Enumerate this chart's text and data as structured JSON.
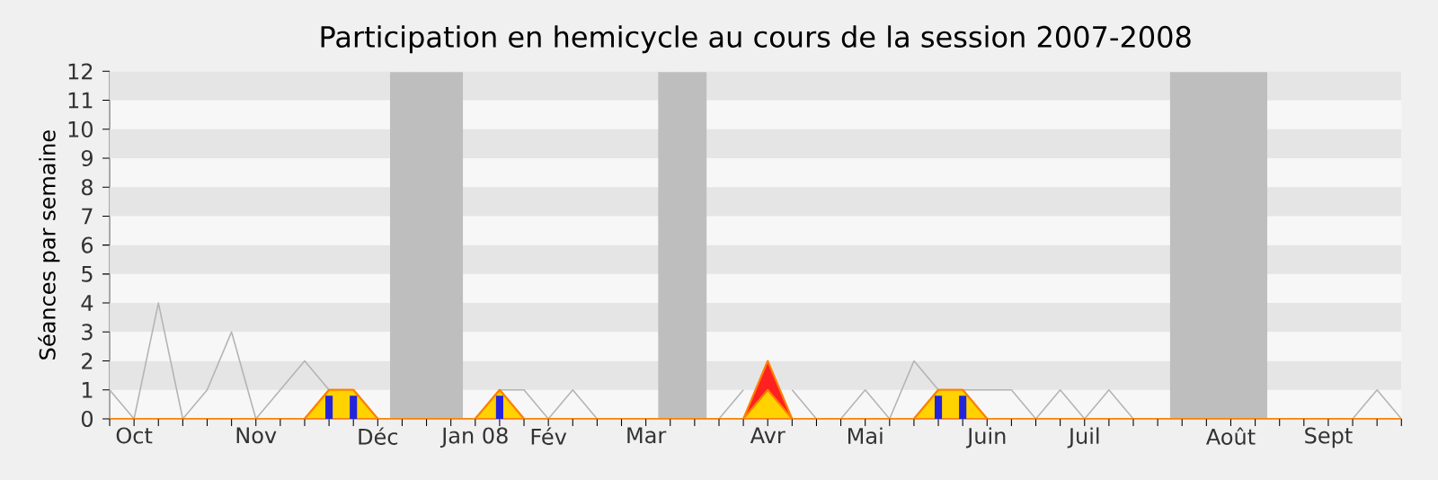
{
  "chart_data": {
    "type": "area",
    "title": "Participation en hemicycle au cours de la session 2007-2008",
    "ylabel": "Séances par semaine",
    "categories": [
      null,
      "Oct",
      null,
      null,
      null,
      null,
      "Nov",
      null,
      null,
      null,
      null,
      "Déc",
      null,
      null,
      null,
      "Jan 08",
      null,
      null,
      "Fév",
      null,
      null,
      null,
      "Mar",
      null,
      null,
      null,
      null,
      "Avr",
      null,
      null,
      null,
      "Mai",
      null,
      null,
      null,
      null,
      "Juin",
      null,
      null,
      null,
      "Juil",
      null,
      null,
      null,
      null,
      null,
      "Août",
      null,
      null,
      null,
      "Sept",
      null,
      null,
      null
    ],
    "ylim": [
      0,
      12
    ],
    "yticks": [
      0,
      1,
      2,
      3,
      4,
      5,
      6,
      7,
      8,
      9,
      10,
      11,
      12
    ],
    "series": [
      {
        "type": "line",
        "color": "#b4b4b4",
        "values": [
          1,
          0,
          4,
          0,
          1,
          3,
          0,
          1,
          2,
          1,
          null,
          0,
          0,
          0,
          0,
          0,
          1,
          1,
          0,
          1,
          0,
          0,
          0,
          0,
          0,
          0,
          1,
          null,
          1,
          0,
          0,
          1,
          0,
          2,
          1,
          1,
          1,
          1,
          0,
          1,
          0,
          1,
          0,
          0,
          0,
          0,
          0,
          0,
          0,
          0,
          0,
          0,
          1,
          0
        ]
      },
      {
        "color": "#ff2020",
        "values": [
          0,
          0,
          0,
          0,
          0,
          0,
          0,
          0,
          0,
          1,
          1,
          0,
          0,
          0,
          0,
          0,
          1,
          0,
          0,
          0,
          0,
          0,
          0,
          0,
          0,
          0,
          0,
          2,
          0,
          0,
          0,
          0,
          0,
          0,
          1,
          1,
          0,
          0,
          0,
          0,
          0,
          0,
          0,
          0,
          0,
          0,
          0,
          0,
          0,
          0,
          0,
          0,
          0,
          0
        ]
      },
      {
        "color": "#ffd200",
        "values": [
          0,
          0,
          0,
          0,
          0,
          0,
          0,
          0,
          0,
          1,
          1,
          0,
          0,
          0,
          0,
          0,
          1,
          0,
          0,
          0,
          0,
          0,
          0,
          0,
          0,
          0,
          0,
          1,
          0,
          0,
          0,
          0,
          0,
          0,
          1,
          1,
          0,
          0,
          0,
          0,
          0,
          0,
          0,
          0,
          0,
          0,
          0,
          0,
          0,
          0,
          0,
          0,
          0,
          0
        ]
      },
      {
        "type": "bar",
        "color": "#2424dd",
        "values": [
          null,
          null,
          null,
          null,
          null,
          null,
          null,
          null,
          null,
          0.8,
          0.8,
          null,
          null,
          null,
          null,
          null,
          0.8,
          null,
          null,
          null,
          null,
          null,
          null,
          null,
          null,
          null,
          null,
          null,
          null,
          null,
          null,
          null,
          null,
          null,
          0.8,
          0.8,
          null,
          null,
          null,
          null,
          null,
          null,
          null,
          null,
          null,
          null,
          null,
          null,
          null,
          null,
          null,
          null,
          null,
          null
        ]
      }
    ]
  }
}
